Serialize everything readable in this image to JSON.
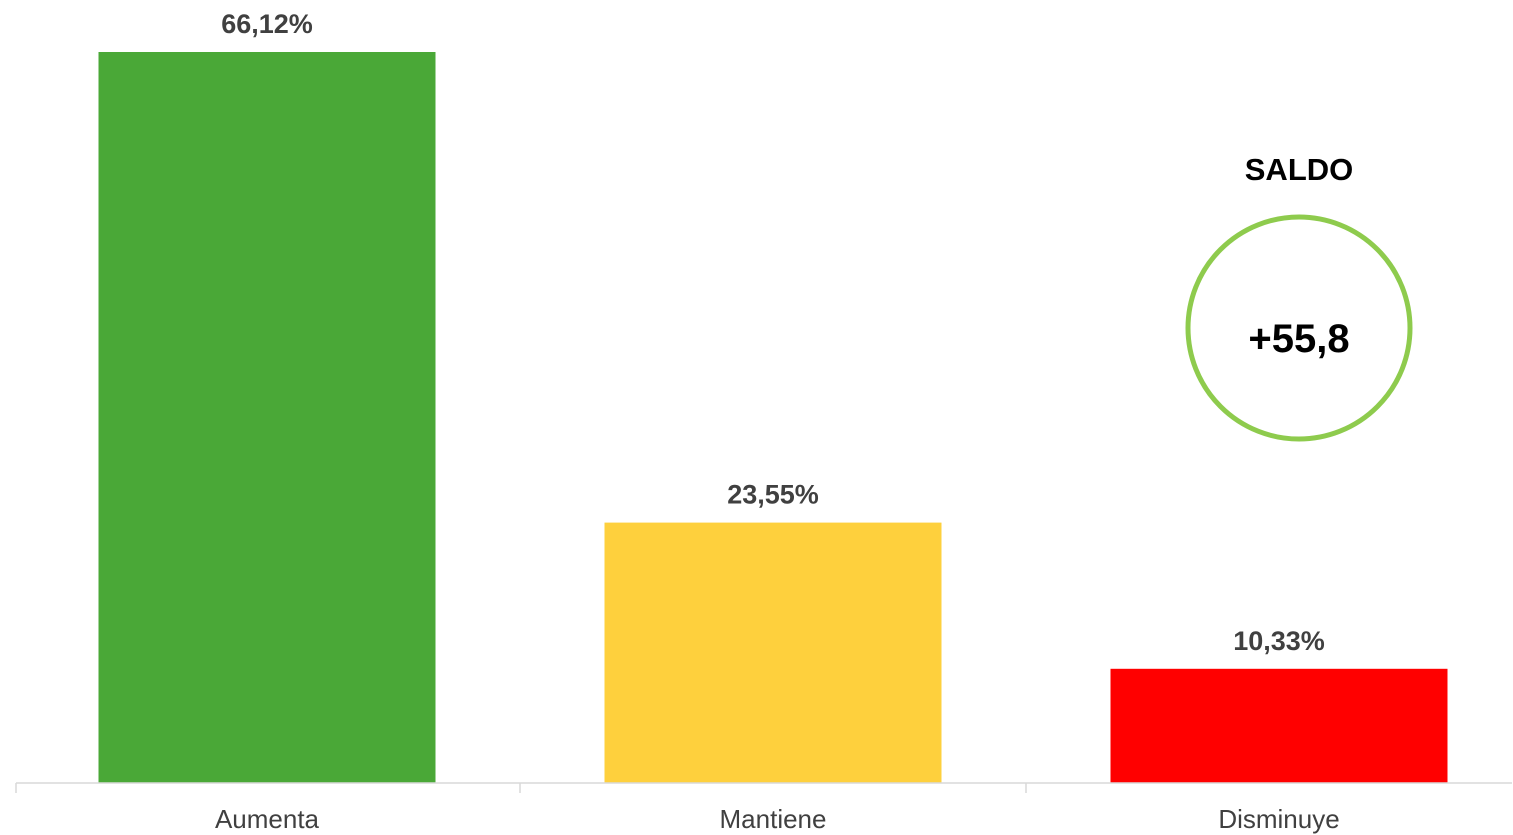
{
  "chart_data": {
    "type": "bar",
    "categories": [
      "Aumenta",
      "Mantiene",
      "Disminuye"
    ],
    "values": [
      66.12,
      23.55,
      10.33
    ],
    "data_labels": [
      "66,12%",
      "23,55%",
      "10,33%"
    ],
    "colors": [
      "#4aa837",
      "#fed03d",
      "#ff0000"
    ],
    "ylim": [
      0,
      70
    ],
    "grid": false,
    "legend": "none",
    "title": "",
    "xlabel": "",
    "ylabel": ""
  },
  "saldo": {
    "title": "SALDO",
    "value": "+55,8",
    "ring_color": "#8ecb4d"
  }
}
